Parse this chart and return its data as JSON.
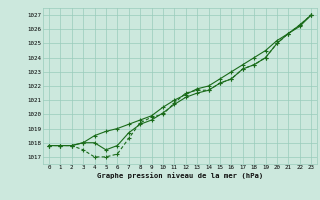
{
  "x": [
    0,
    1,
    2,
    3,
    4,
    5,
    6,
    7,
    8,
    9,
    10,
    11,
    12,
    13,
    14,
    15,
    16,
    17,
    18,
    19,
    20,
    21,
    22,
    23
  ],
  "line1": [
    1017.8,
    1017.8,
    1017.8,
    1017.5,
    1017.0,
    1017.0,
    1017.2,
    1018.3,
    1019.4,
    1019.8,
    1020.0,
    1020.8,
    1021.5,
    1021.7,
    1021.7,
    1022.2,
    1022.5,
    1023.2,
    1023.5,
    1024.0,
    1025.0,
    1025.7,
    1026.3,
    1027.0
  ],
  "line2": [
    1017.8,
    1017.8,
    1017.8,
    1018.0,
    1018.0,
    1017.5,
    1017.8,
    1018.7,
    1019.3,
    1019.6,
    1020.1,
    1020.7,
    1021.2,
    1021.5,
    1021.7,
    1022.2,
    1022.5,
    1023.2,
    1023.5,
    1024.0,
    1025.0,
    1025.7,
    1026.3,
    1027.0
  ],
  "line3": [
    1017.8,
    1017.8,
    1017.8,
    1018.0,
    1018.5,
    1018.8,
    1019.0,
    1019.3,
    1019.6,
    1019.9,
    1020.5,
    1021.0,
    1021.4,
    1021.8,
    1022.0,
    1022.5,
    1023.0,
    1023.5,
    1024.0,
    1024.5,
    1025.2,
    1025.7,
    1026.2,
    1027.0
  ],
  "line_color": "#1a6b1a",
  "bg_color": "#cce8dd",
  "grid_color": "#99ccbb",
  "xlabel": "Graphe pression niveau de la mer (hPa)",
  "ylim_min": 1016.5,
  "ylim_max": 1027.5,
  "xlim_min": -0.5,
  "xlim_max": 23.5,
  "yticks": [
    1017,
    1018,
    1019,
    1020,
    1021,
    1022,
    1023,
    1024,
    1025,
    1026,
    1027
  ],
  "xticks": [
    0,
    1,
    2,
    3,
    4,
    5,
    6,
    7,
    8,
    9,
    10,
    11,
    12,
    13,
    14,
    15,
    16,
    17,
    18,
    19,
    20,
    21,
    22,
    23
  ]
}
